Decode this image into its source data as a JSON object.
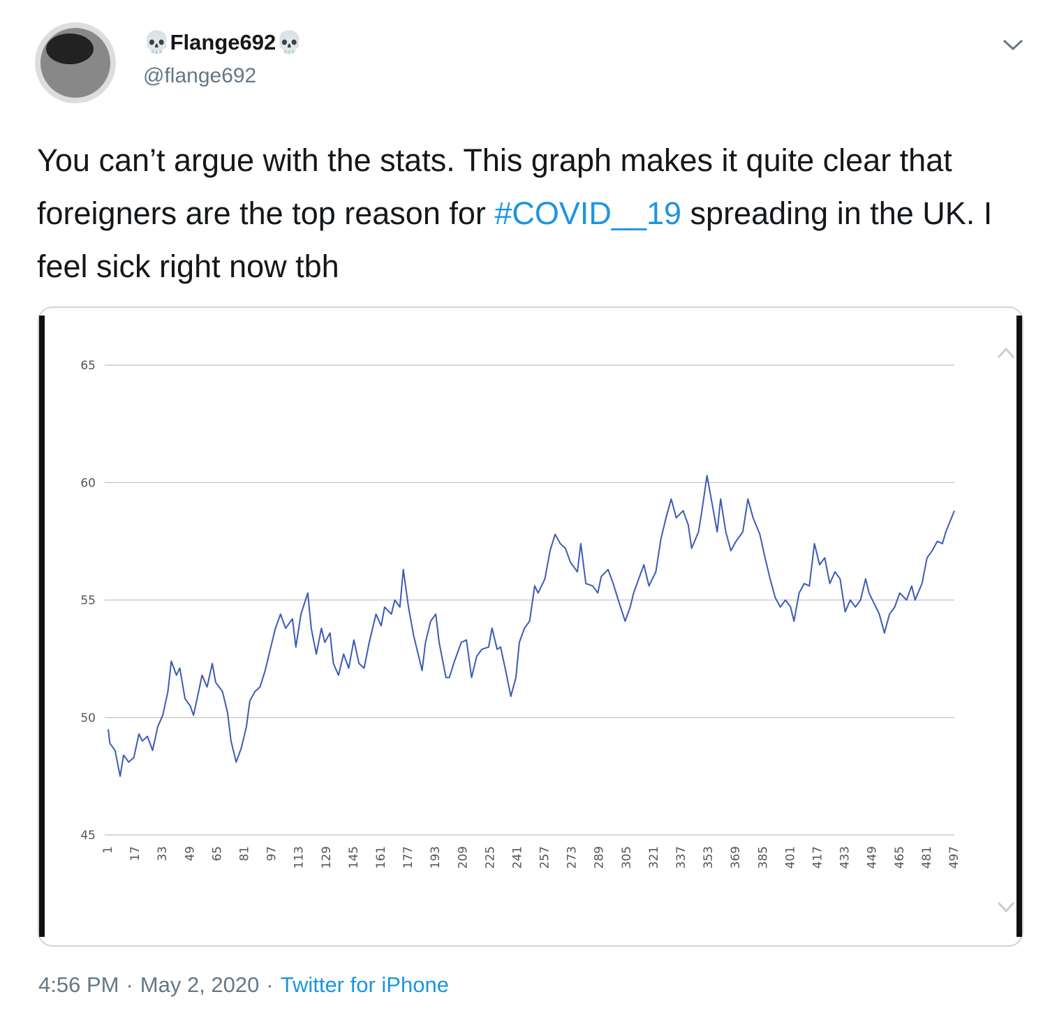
{
  "header": {
    "display_name": "💀Flange692💀",
    "handle": "@flange692"
  },
  "tweet": {
    "text_before": "You can’t argue with the stats. This graph makes it quite clear that foreigners are the top reason for ",
    "hashtag": "#COVID__19",
    "text_after": " spreading in the UK. I feel sick right now tbh"
  },
  "chart_data": {
    "type": "line",
    "color": "#3b5bb5",
    "grid": true,
    "x": [
      1,
      2,
      5,
      8,
      10,
      13,
      16,
      19,
      21,
      24,
      27,
      30,
      33,
      36,
      38,
      41,
      43,
      46,
      49,
      51,
      54,
      56,
      59,
      62,
      64,
      68,
      71,
      73,
      76,
      79,
      82,
      84,
      87,
      90,
      93,
      96,
      99,
      102,
      105,
      109,
      111,
      114,
      118,
      120,
      123,
      126,
      128,
      131,
      133,
      136,
      139,
      142,
      145,
      148,
      151,
      154,
      158,
      161,
      163,
      167,
      169,
      172,
      174,
      177,
      180,
      182,
      185,
      187,
      190,
      193,
      195,
      199,
      201,
      204,
      208,
      211,
      214,
      217,
      220,
      224,
      226,
      229,
      231,
      234,
      237,
      240,
      242,
      245,
      248,
      251,
      253,
      257,
      260,
      263,
      266,
      269,
      272,
      276,
      278,
      281,
      285,
      288,
      290,
      294,
      297,
      300,
      304,
      307,
      309,
      312,
      315,
      318,
      322,
      325,
      328,
      331,
      334,
      338,
      341,
      343,
      347,
      349,
      352,
      355,
      358,
      360,
      363,
      366,
      369,
      373,
      376,
      379,
      383,
      386,
      389,
      392,
      395,
      398,
      401,
      403,
      406,
      409,
      412,
      415,
      418,
      421,
      424,
      427,
      430,
      433,
      436,
      439,
      442,
      445,
      447,
      451,
      453,
      456,
      459,
      462,
      465,
      469,
      472,
      474,
      478,
      481,
      484,
      487,
      490,
      492,
      497
    ],
    "values": [
      49.5,
      48.9,
      48.6,
      47.5,
      48.4,
      48.1,
      48.3,
      49.3,
      49.0,
      49.2,
      48.6,
      49.6,
      50.1,
      51.1,
      52.4,
      51.8,
      52.1,
      50.8,
      50.5,
      50.1,
      51.1,
      51.8,
      51.3,
      52.3,
      51.5,
      51.1,
      50.2,
      49.0,
      48.1,
      48.7,
      49.6,
      50.7,
      51.1,
      51.3,
      52.0,
      52.9,
      53.8,
      54.4,
      53.8,
      54.2,
      53.0,
      54.4,
      55.3,
      53.8,
      52.7,
      53.8,
      53.2,
      53.6,
      52.3,
      51.8,
      52.7,
      52.1,
      53.3,
      52.3,
      52.1,
      53.2,
      54.4,
      53.9,
      54.7,
      54.4,
      55.0,
      54.7,
      56.3,
      54.7,
      53.5,
      52.9,
      52.0,
      53.2,
      54.1,
      54.4,
      53.2,
      51.7,
      51.7,
      52.4,
      53.2,
      53.3,
      51.7,
      52.6,
      52.9,
      53.0,
      53.8,
      52.9,
      53.0,
      52.0,
      50.9,
      51.7,
      53.2,
      53.8,
      54.1,
      55.6,
      55.3,
      55.9,
      57.1,
      57.8,
      57.4,
      57.2,
      56.6,
      56.2,
      57.4,
      55.7,
      55.6,
      55.3,
      56.0,
      56.3,
      55.7,
      55.0,
      54.1,
      54.7,
      55.3,
      55.9,
      56.5,
      55.6,
      56.2,
      57.6,
      58.5,
      59.3,
      58.5,
      58.8,
      58.2,
      57.2,
      57.9,
      58.8,
      60.3,
      59.1,
      57.9,
      59.3,
      57.9,
      57.1,
      57.5,
      57.9,
      59.3,
      58.5,
      57.8,
      56.8,
      55.9,
      55.1,
      54.7,
      55.0,
      54.7,
      54.1,
      55.3,
      55.7,
      55.6,
      57.4,
      56.5,
      56.8,
      55.7,
      56.2,
      55.9,
      54.5,
      55.0,
      54.7,
      55.0,
      55.9,
      55.3,
      54.7,
      54.4,
      53.6,
      54.4,
      54.7,
      55.3,
      55.0,
      55.6,
      55.0,
      55.7,
      56.8,
      57.1,
      57.5,
      57.4,
      57.9,
      58.8
    ],
    "xlim": [
      1,
      497
    ],
    "xticks": [
      1,
      17,
      33,
      49,
      65,
      81,
      97,
      113,
      129,
      145,
      161,
      177,
      193,
      209,
      225,
      241,
      257,
      273,
      289,
      305,
      321,
      337,
      353,
      369,
      385,
      401,
      417,
      433,
      449,
      465,
      481,
      497
    ],
    "ylim": [
      45,
      65
    ],
    "yticks": [
      45,
      50,
      55,
      60,
      65
    ]
  },
  "footer": {
    "time": "4:56 PM",
    "separator": "·",
    "date": "May 2, 2020",
    "source": "Twitter for iPhone"
  }
}
